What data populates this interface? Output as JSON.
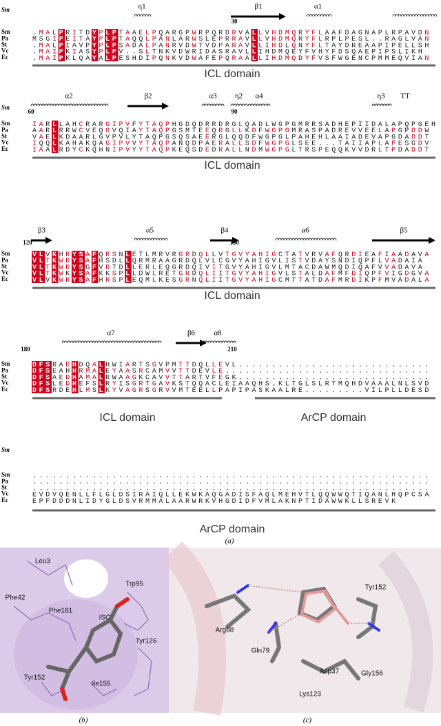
{
  "panel_a": {
    "caption": "(a)",
    "blocks": [
      {
        "ss_label": "Sm",
        "secondary_structure": [
          "η1",
          "β1",
          "α1"
        ],
        "numbers": [
          30
        ],
        "rows": [
          {
            "name": "Sm",
            "seq": ".MALPRITDYPLPTAAELPQARGPWRPQRDRVALLVHDMQRYFLAAFDAGNAPLRPAVDN"
          },
          {
            "name": "Pa",
            "seq": "MSGIPEITAYPLPTAQQLPANLARWSLEPRRAVLLVHDMQRYFLRPLPESL..RAGLVAN"
          },
          {
            "name": "St",
            "seq": ".MALPIAVPYPLPSADALPANRVDWTVDPARAVLLIHDLQNYFLTAYDREAAPIPELLSH"
          },
          {
            "name": "Vc",
            "seq": ".MAIPKIASYPLPV..SLTNKVDWRIDASRAVLLIHDMQEYFVHYFDSQAEPIPSLIKH"
          },
          {
            "name": "Ec",
            "seq": ".MAIPKLQAYALPESHDIPQNKVDWAFEPQRAALLIHDMQDYFVSFWGENCPMMEQVIAN"
          }
        ],
        "domains": [
          "ICL domain"
        ]
      },
      {
        "ss_label": "Sm",
        "secondary_structure": [
          "α2",
          "β2",
          "α3",
          "η2",
          "α4",
          "η3",
          "TT"
        ],
        "numbers": [
          60,
          90
        ],
        "rows": [
          {
            "name": "Sm",
            "seq": "IARLLAHCRARGIPVFYTAQPHGDQDRRDRGLQADLWGPGMRRSADHEPIIDALAPQPGEH"
          },
          {
            "name": "Pa",
            "seq": "AARLRRWCVEQGVQIAYTAQPGSMTEEQRGLLKDFWGPGMRASPADREVVEELAPGPDDW"
          },
          {
            "name": "St",
            "seq": "VAELKDAARLGVPVLYTAQPGSQSAEERGLQQDFWGPGLPAHEHLAAIADEVAPGDADDT"
          },
          {
            "name": "Vc",
            "seq": "IQQLKAHAKQAGIPVVYTAQPANQDPAERALLSDFWGPGLSEE...TAIIAPLAPESGDV"
          },
          {
            "name": "Ec",
            "seq": "IAALRDYCKQHNIPVYYTAQPKEQSDEDRALLNDMWGPGLTRSPEQQKVVDRLTPDADDT"
          }
        ],
        "domains": [
          "ICL domain"
        ]
      },
      {
        "secondary_structure": [
          "β3",
          "α5",
          "β4",
          "α6",
          "β5"
        ],
        "numbers": [
          120,
          150
        ],
        "rows": [
          {
            "name": "Sm",
            "seq": "VLVKHRYSAFQRSNLETLMRVRGRDQLLVTGVYAHIGCTATVRVAFQRDIEAFIAADAVA"
          },
          {
            "name": "Pa",
            "seq": "VLTKWRYSAFHSDLLQRMRAAGRDQLVLCGVYAHIGVLISTVDAYSNDIQPFLVADAIA"
          },
          {
            "name": "St",
            "seq": "VLTKWRYSGFVRTDLLERLEQGRDQIVITGVYAHIGVLMTACDAWMQDIQAFVVADAVA"
          },
          {
            "name": "Vc",
            "seq": "VLTKWKYSAFKKSPLLDWLRETGRDQLIITGVYAHIGVLSTALDAFMFDIQPFVIGDGVA"
          },
          {
            "name": "Ec",
            "seq": "VLVKWRYSAFHRSPLEQMLKESGRNQLIITGVYAHIGCMTTATDAFMRDIKPFMVADALA"
          }
        ],
        "domains": [
          "ICL domain"
        ]
      },
      {
        "secondary_structure": [
          "α7",
          "β6",
          "α8"
        ],
        "numbers": [
          180,
          210
        ],
        "rows": [
          {
            "name": "Sm",
            "seq": "DFSRADHDQALHWIARTSGVPMTTDQLLEVL............................."
          },
          {
            "name": "Pa",
            "seq": "DFSEAHHRMALEYAASRCAMVVTTDEVLE..............................."
          },
          {
            "name": "St",
            "seq": "DFSAEDHAMALRWAAGKCAVVTTARTVFEGK............................."
          },
          {
            "name": "Vc",
            "seq": "DFSLEDHEFSLRYISGRTGAVKSTQQACLEIAAQHS.KLTGLSLRTMQHDVAAALNLSVD"
          },
          {
            "name": "Ec",
            "seq": "DFSRDEHLMSLKYVAGRSGRVVMTEELLPAPIPASKAALRE.........VILPLLDESD"
          }
        ],
        "domains": [
          "ICL domain",
          "ArCP domain"
        ]
      },
      {
        "ss_label": "Sm",
        "secondary_structure": [],
        "numbers": [],
        "rows": [
          {
            "name": "Sm",
            "seq": "............................................................"
          },
          {
            "name": "Pa",
            "seq": "............................................................"
          },
          {
            "name": "St",
            "seq": "............................................................"
          },
          {
            "name": "Vc",
            "seq": "EVDVQENLLFLGLDSIRAIQLLEKWKAQGADISFAQLMEHVTLQQWWQTIQANLHQPCSA"
          },
          {
            "name": "Ec",
            "seq": "EPFDDDNLIDYGLDSVRMMALAARWRKVHGDIDFVMLAKNPTIDAWWKLLSREVK"
          }
        ],
        "domains": [
          "ArCP domain"
        ]
      }
    ]
  },
  "panel_b": {
    "caption": "(b)",
    "labels": [
      "Leu3",
      "Trp95",
      "Phe42",
      "Phe181",
      "ISC",
      "Tyr126",
      "Tyr152",
      "Ile155"
    ]
  },
  "panel_c": {
    "caption": "(c)",
    "labels": [
      "Tyr152",
      "Arg88",
      "Gln79",
      "Asp37",
      "Gly156",
      "Lys123"
    ]
  }
}
